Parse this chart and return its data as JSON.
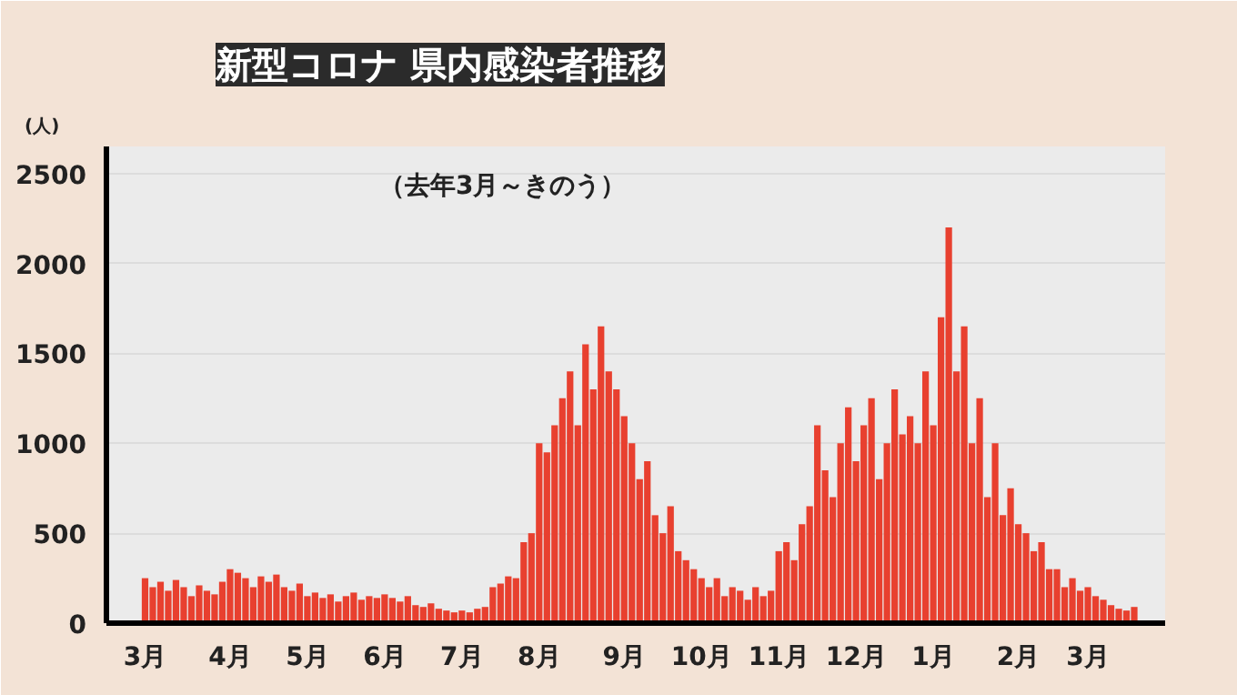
{
  "chart_data": {
    "type": "bar",
    "title": "新型コロナ 県内感染者推移",
    "subtitle": "（去年3月～きのう）",
    "ylabel": "(人)",
    "categories": [
      "3月",
      null,
      null,
      null,
      null,
      null,
      null,
      null,
      null,
      null,
      null,
      "4月",
      null,
      null,
      null,
      null,
      null,
      null,
      null,
      null,
      null,
      "5月",
      null,
      null,
      null,
      null,
      null,
      null,
      null,
      null,
      null,
      "6月",
      null,
      null,
      null,
      null,
      null,
      null,
      null,
      null,
      null,
      "7月",
      null,
      null,
      null,
      null,
      null,
      null,
      null,
      null,
      null,
      "8月",
      null,
      null,
      null,
      null,
      null,
      null,
      null,
      null,
      null,
      null,
      "9月",
      null,
      null,
      null,
      null,
      null,
      null,
      null,
      null,
      null,
      "10月",
      null,
      null,
      null,
      null,
      null,
      null,
      null,
      null,
      null,
      "11月",
      null,
      null,
      null,
      null,
      null,
      null,
      null,
      null,
      null,
      "12月",
      null,
      null,
      null,
      null,
      null,
      null,
      null,
      null,
      null,
      "1月",
      null,
      null,
      null,
      null,
      null,
      null,
      null,
      null,
      null,
      null,
      "2月",
      null,
      null,
      null,
      null,
      null,
      null,
      null,
      null,
      "3月",
      null,
      null,
      null,
      null,
      null,
      null
    ],
    "values": [
      250,
      200,
      230,
      180,
      240,
      200,
      150,
      210,
      180,
      160,
      230,
      300,
      280,
      250,
      200,
      260,
      230,
      270,
      200,
      180,
      220,
      150,
      170,
      140,
      160,
      120,
      150,
      170,
      130,
      150,
      140,
      160,
      140,
      120,
      150,
      100,
      90,
      110,
      80,
      70,
      60,
      70,
      60,
      80,
      90,
      200,
      220,
      260,
      250,
      450,
      500,
      1000,
      950,
      1100,
      1250,
      1400,
      1100,
      1550,
      1300,
      1650,
      1400,
      1300,
      1150,
      1000,
      800,
      900,
      600,
      500,
      650,
      400,
      350,
      300,
      250,
      200,
      250,
      150,
      200,
      180,
      130,
      200,
      150,
      180,
      400,
      450,
      350,
      550,
      650,
      1100,
      850,
      700,
      1000,
      1200,
      900,
      1100,
      1250,
      800,
      1000,
      1300,
      1050,
      1150,
      1000,
      1400,
      1100,
      1700,
      2200,
      1400,
      1650,
      1000,
      1250,
      700,
      1000,
      600,
      750,
      550,
      500,
      400,
      450,
      300,
      300,
      200,
      250,
      180,
      200,
      150,
      130,
      100,
      80,
      70,
      90
    ],
    "color": "#e8402f",
    "ylim": [
      0,
      2650
    ],
    "yticks": [
      0,
      500,
      1000,
      1500,
      2000,
      2500
    ],
    "grid": "y"
  }
}
